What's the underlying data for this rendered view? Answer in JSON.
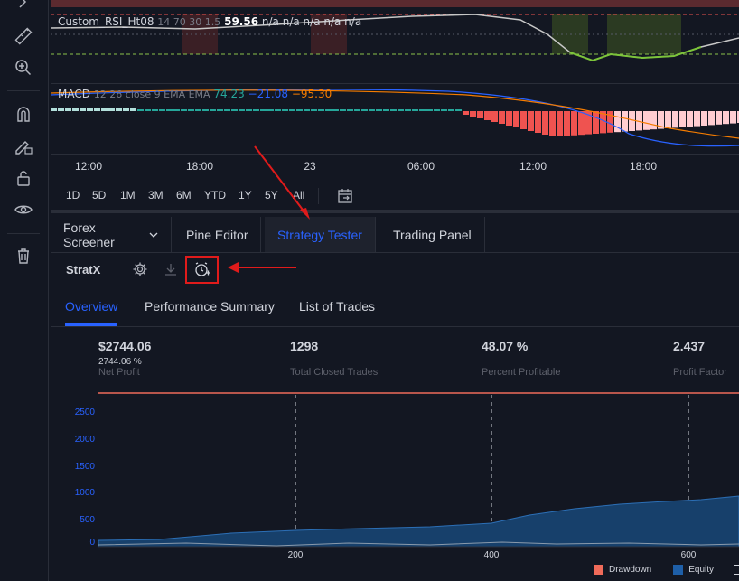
{
  "rsi": {
    "name": "Custom_RSI_Ht08",
    "params": "14 70 30 1.5",
    "value": "59.56",
    "rest": "n/a n/a n/a n/a n/a"
  },
  "macd": {
    "name": "MACD",
    "params": "12 26 close 9 EMA EMA",
    "v1": "74.23",
    "v2": "−21.08",
    "v3": "−95.30",
    "c1": "#26a69a",
    "c2": "#2962ff",
    "c3": "#f57c00"
  },
  "time_axis": [
    "12:00",
    "18:00",
    "23",
    "06:00",
    "12:00",
    "18:00"
  ],
  "ranges": [
    "1D",
    "5D",
    "1M",
    "3M",
    "6M",
    "YTD",
    "1Y",
    "5Y",
    "All"
  ],
  "tabs": [
    "Forex Screener",
    "Pine Editor",
    "Strategy Tester",
    "Trading Panel"
  ],
  "strategy_name": "StratX",
  "subtabs": [
    "Overview",
    "Performance Summary",
    "List of Trades"
  ],
  "stats": {
    "net_profit": {
      "value": "$2744.06",
      "pct": "2744.06 %",
      "label": "Net Profit"
    },
    "closed_trades": {
      "value": "1298",
      "label": "Total Closed Trades"
    },
    "profitable": {
      "value": "48.07 %",
      "label": "Percent Profitable"
    },
    "profit_factor": {
      "value": "2.437",
      "label": "Profit Factor"
    }
  },
  "equity_chart": {
    "y_ticks": [
      "2500",
      "2000",
      "1500",
      "1000",
      "500",
      "0"
    ],
    "x_ticks": [
      "200",
      "400",
      "600"
    ],
    "legend": [
      {
        "name": "Drawdown",
        "color": "#ef6b5a"
      },
      {
        "name": "Equity",
        "color": "#1e5fa8"
      }
    ]
  },
  "colors": {
    "accent": "#2962ff",
    "bg": "#131722",
    "highlight": "#e01b1b"
  }
}
